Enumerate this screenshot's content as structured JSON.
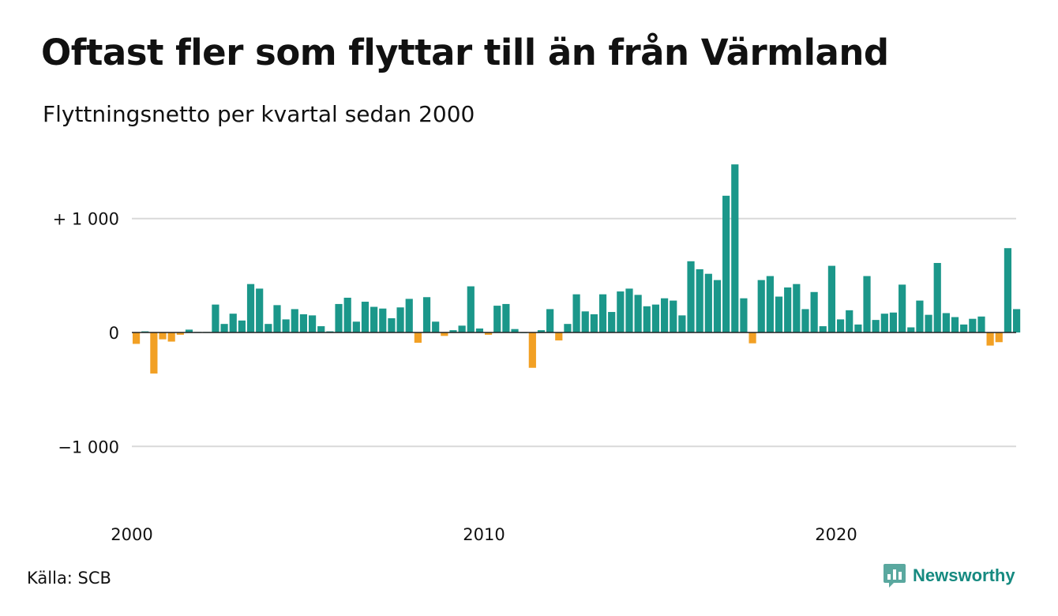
{
  "header": {
    "title": "Oftast fler som flyttar till än från Värmland",
    "subtitle": "Flyttningsnetto per kvartal sedan 2000"
  },
  "footer": {
    "source": "Källa: SCB",
    "brand": "Newsworthy"
  },
  "colors": {
    "positive": "#1b978a",
    "negative": "#f2a024",
    "gridline": "#d9d9d9",
    "baseline": "#222222",
    "brand": "#168a80"
  },
  "icons": {
    "brand": "newsworthy-logo-icon"
  },
  "chart_data": {
    "type": "bar",
    "x_start": "2000",
    "x_step": "quarter",
    "x_ticks": [
      "2000",
      "2010",
      "2020"
    ],
    "y_ticks": [
      {
        "value": 1000,
        "label": "+ 1 000"
      },
      {
        "value": 0,
        "label": "0"
      },
      {
        "value": -1000,
        "label": "−1 000"
      }
    ],
    "ylim": [
      -1600,
      1500
    ],
    "grid": true,
    "values": [
      -100,
      10,
      -360,
      -60,
      -80,
      -20,
      25,
      5,
      5,
      245,
      75,
      165,
      105,
      425,
      385,
      75,
      240,
      115,
      205,
      160,
      150,
      55,
      10,
      250,
      305,
      95,
      270,
      225,
      210,
      125,
      220,
      295,
      -90,
      310,
      95,
      -30,
      20,
      60,
      405,
      35,
      -20,
      235,
      250,
      30,
      0,
      -310,
      20,
      205,
      -70,
      75,
      335,
      185,
      160,
      335,
      180,
      360,
      385,
      330,
      230,
      245,
      300,
      280,
      150,
      625,
      555,
      515,
      460,
      1200,
      1475,
      300,
      -95,
      460,
      495,
      315,
      395,
      425,
      205,
      355,
      55,
      585,
      115,
      195,
      70,
      495,
      110,
      165,
      175,
      420,
      45,
      280,
      155,
      610,
      170,
      135,
      70,
      120,
      140,
      -115,
      -85,
      740,
      205
    ]
  }
}
